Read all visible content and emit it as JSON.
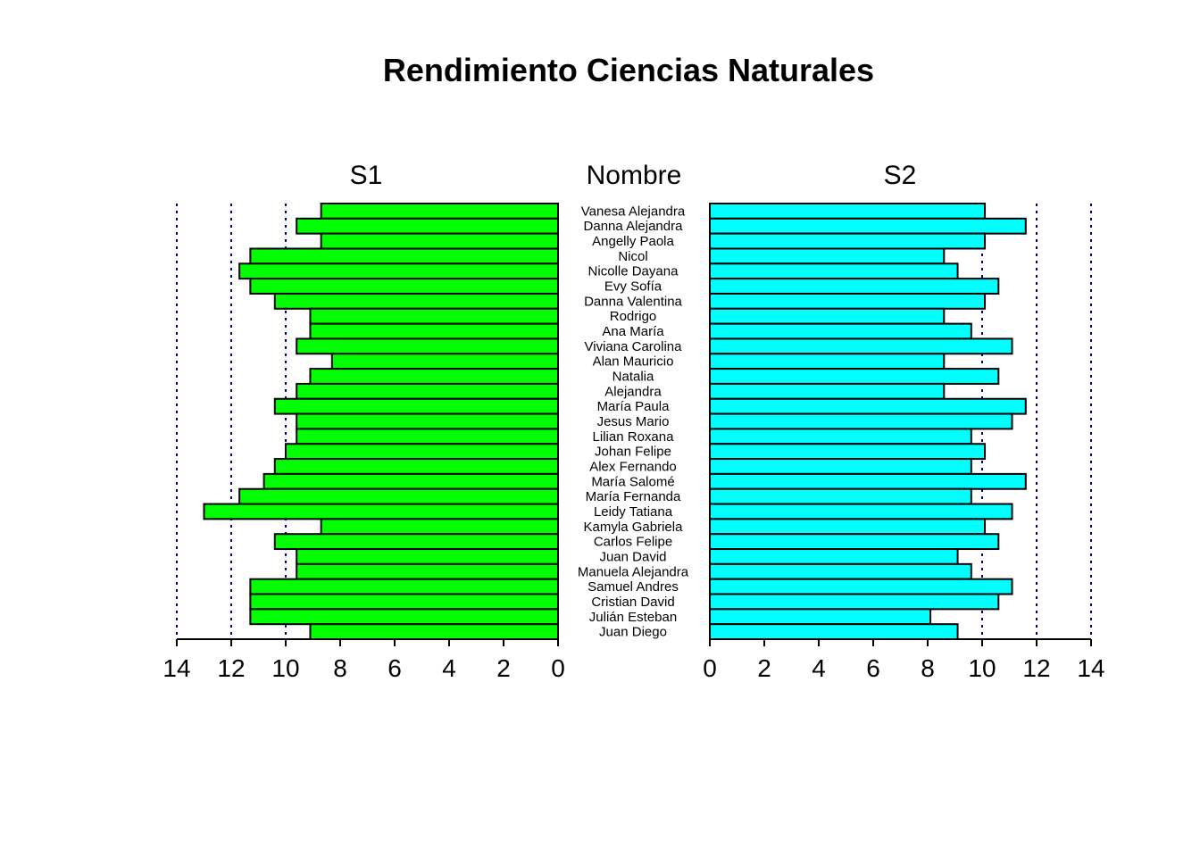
{
  "chart_data": {
    "type": "bar",
    "title": "Rendimiento Ciencias Naturales",
    "center_label": "Nombre",
    "categories": [
      "Vanesa Alejandra",
      "Danna Alejandra",
      "Angelly Paola",
      "Nicol",
      "Nicolle Dayana",
      "Evy Sofía",
      "Danna Valentina",
      "Rodrigo",
      "Ana María",
      "Viviana Carolina",
      "Alan Mauricio",
      "Natalia",
      "Alejandra",
      "María Paula",
      "Jesus Mario",
      "Lilian Roxana",
      "Johan Felipe",
      "Alex Fernando",
      "María Salomé",
      "María Fernanda",
      "Leidy Tatiana",
      "Kamyla Gabriela",
      "Carlos Felipe",
      "Juan David",
      "Manuela Alejandra",
      "Samuel Andres",
      "Cristian David",
      "Julián Esteban",
      "Juan Diego"
    ],
    "series": [
      {
        "name": "S1",
        "color": "#00ff00",
        "side": "left",
        "values": [
          8.7,
          9.6,
          8.7,
          11.3,
          11.7,
          11.3,
          10.4,
          9.1,
          9.1,
          9.6,
          8.3,
          9.1,
          9.6,
          10.4,
          9.6,
          9.6,
          10.0,
          10.4,
          10.8,
          11.7,
          13.0,
          8.7,
          10.4,
          9.6,
          9.6,
          11.3,
          11.3,
          11.3,
          9.1
        ]
      },
      {
        "name": "S2",
        "color": "#00ffff",
        "side": "right",
        "values": [
          10.1,
          11.6,
          10.1,
          8.6,
          9.1,
          10.6,
          10.1,
          8.6,
          9.6,
          11.1,
          8.6,
          10.6,
          8.6,
          11.6,
          11.1,
          9.6,
          10.1,
          9.6,
          11.6,
          9.6,
          11.1,
          10.1,
          10.6,
          9.1,
          9.6,
          11.1,
          10.6,
          8.1,
          9.1
        ]
      }
    ],
    "xlim": [
      0,
      14
    ],
    "ticks": [
      0,
      2,
      4,
      6,
      8,
      10,
      12,
      14
    ],
    "gridlines": [
      10,
      12,
      14
    ],
    "grid_color": "#00008b"
  }
}
